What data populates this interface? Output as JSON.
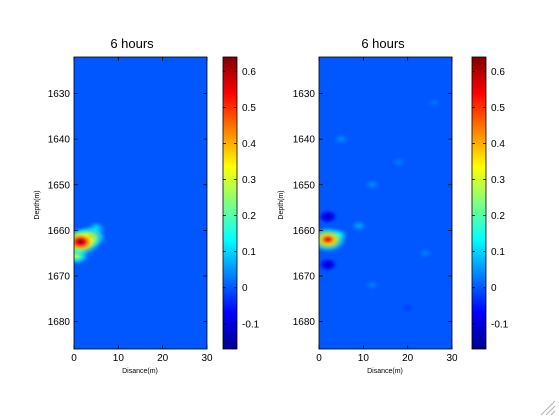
{
  "chart_data": [
    {
      "type": "heatmap",
      "title": "6 hours",
      "xlabel": "Disance(m)",
      "ylabel": "Depth(m)",
      "xlim": [
        0,
        30
      ],
      "ylim": [
        1622,
        1686
      ],
      "y_reversed": true,
      "xticks": [
        0,
        10,
        20,
        30
      ],
      "xtick_labels": [
        "0",
        "10",
        "20",
        "30"
      ],
      "yticks": [
        1630,
        1640,
        1650,
        1660,
        1670,
        1680
      ],
      "ytick_labels": [
        "1630",
        "1640",
        "1650",
        "1660",
        "1670",
        "1680"
      ],
      "colormap": "jet",
      "colorbar": {
        "min": -0.17,
        "max": 0.64,
        "ticks": [
          -0.1,
          0,
          0.1,
          0.2,
          0.3,
          0.4,
          0.5,
          0.6
        ],
        "tick_labels": [
          "-0.1",
          "0",
          "0.1",
          "0.2",
          "0.3",
          "0.4",
          "0.5",
          "0.6"
        ]
      },
      "background_value": 0.0,
      "features": [
        {
          "x": 1.5,
          "y": 1662.5,
          "value": 0.64
        },
        {
          "x": 3.5,
          "y": 1661.5,
          "value": 0.45
        },
        {
          "x": 5.0,
          "y": 1659.5,
          "value": 0.12
        },
        {
          "x": 0.5,
          "y": 1665.5,
          "value": 0.3
        }
      ]
    },
    {
      "type": "heatmap",
      "title": "6 hours",
      "xlabel": "Disance(m)",
      "ylabel": "Depth(m)",
      "xlim": [
        0,
        30
      ],
      "ylim": [
        1622,
        1686
      ],
      "y_reversed": true,
      "xticks": [
        0,
        10,
        20,
        30
      ],
      "xtick_labels": [
        "0",
        "10",
        "20",
        "30"
      ],
      "yticks": [
        1630,
        1640,
        1650,
        1660,
        1670,
        1680
      ],
      "ytick_labels": [
        "1630",
        "1640",
        "1650",
        "1660",
        "1670",
        "1680"
      ],
      "colormap": "jet",
      "colorbar": {
        "min": -0.17,
        "max": 0.64,
        "ticks": [
          -0.1,
          0,
          0.1,
          0.2,
          0.3,
          0.4,
          0.5,
          0.6
        ],
        "tick_labels": [
          "-0.1",
          "0",
          "0.1",
          "0.2",
          "0.3",
          "0.4",
          "0.5",
          "0.6"
        ]
      },
      "background_value": 0.0,
      "features": [
        {
          "x": 2.0,
          "y": 1662.0,
          "value": 0.55
        },
        {
          "x": 4.5,
          "y": 1661.0,
          "value": 0.12
        },
        {
          "x": 9.0,
          "y": 1659.0,
          "value": 0.06
        },
        {
          "x": 2.0,
          "y": 1657.0,
          "value": -0.14
        },
        {
          "x": 2.0,
          "y": 1667.5,
          "value": -0.13
        },
        {
          "x": 12.0,
          "y": 1650.0,
          "value": 0.04
        },
        {
          "x": 18.0,
          "y": 1645.0,
          "value": 0.03
        },
        {
          "x": 12.0,
          "y": 1672.0,
          "value": 0.03
        },
        {
          "x": 5.0,
          "y": 1640.0,
          "value": 0.04
        },
        {
          "x": 24.0,
          "y": 1665.0,
          "value": 0.03
        },
        {
          "x": 20.0,
          "y": 1677.0,
          "value": -0.02
        },
        {
          "x": 26.0,
          "y": 1632.0,
          "value": 0.02
        }
      ]
    }
  ]
}
